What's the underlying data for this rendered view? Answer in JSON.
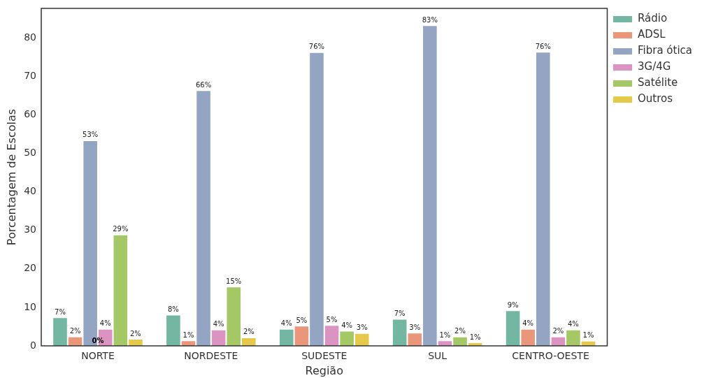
{
  "chart_data": {
    "type": "bar",
    "xlabel": "Região",
    "ylabel": "Porcentagem de Escolas",
    "categories": [
      "NORTE",
      "NORDESTE",
      "SUDESTE",
      "SUL",
      "CENTRO-OESTE"
    ],
    "series": [
      {
        "name": "Rádio",
        "color": "#73b6a1",
        "values": [
          7.4,
          8.1,
          4.4,
          7.0,
          9.2
        ],
        "value_labels": [
          "7%",
          "8%",
          "4%",
          "7%",
          "9%"
        ]
      },
      {
        "name": "ADSL",
        "color": "#e9967a",
        "values": [
          2.4,
          1.4,
          5.2,
          3.4,
          4.4
        ],
        "value_labels": [
          "2%",
          "1%",
          "5%",
          "3%",
          "4%"
        ]
      },
      {
        "name": "Fibra ótica",
        "color": "#94a5c3",
        "values": [
          53.4,
          66.4,
          76.3,
          83.3,
          76.4
        ],
        "value_labels": [
          "53%",
          "66%",
          "76%",
          "83%",
          "76%"
        ]
      },
      {
        "name": "3G/4G",
        "color": "#db93c1",
        "values": [
          4.4,
          4.2,
          5.4,
          1.4,
          2.4
        ],
        "value_labels": [
          "4%",
          "4%",
          "5%",
          "1%",
          "2%"
        ]
      },
      {
        "name": "Satélite",
        "color": "#a5c867",
        "values": [
          28.9,
          15.4,
          3.9,
          2.4,
          4.2
        ],
        "value_labels": [
          "29%",
          "15%",
          "4%",
          "2%",
          "4%"
        ]
      },
      {
        "name": "Outros",
        "color": "#e5c94b",
        "values": [
          1.8,
          2.2,
          3.3,
          0.9,
          1.3
        ],
        "value_labels": [
          "2%",
          "2%",
          "3%",
          "1%",
          "1%"
        ]
      }
    ],
    "annotations": [
      {
        "text": "0%",
        "x": "NORTE",
        "y": 0
      }
    ],
    "ylim": [
      0,
      87.7
    ],
    "yticks": [
      0,
      10,
      20,
      30,
      40,
      50,
      60,
      70,
      80
    ],
    "grid": false,
    "legend": "top right"
  }
}
